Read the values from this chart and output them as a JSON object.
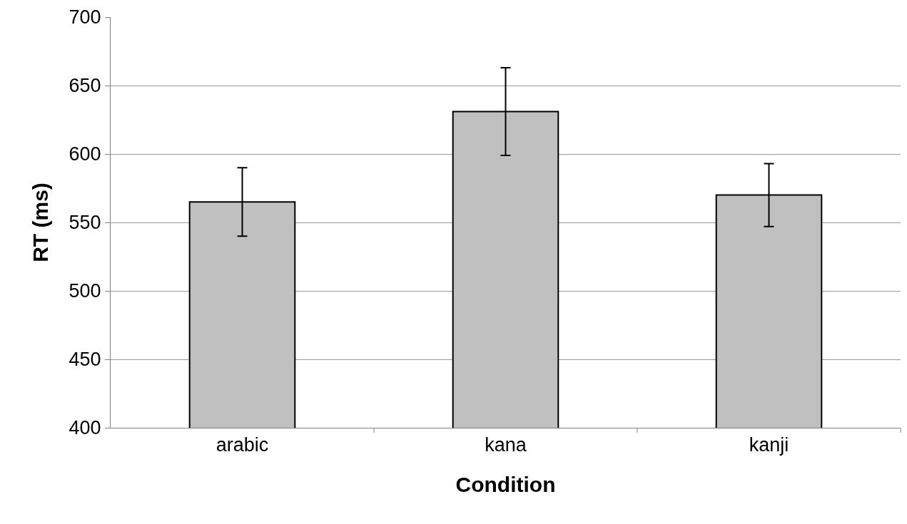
{
  "chart_data": {
    "type": "bar",
    "xlabel": "Condition",
    "ylabel": "RT (ms)",
    "categories": [
      "arabic",
      "kana",
      "kanji"
    ],
    "values": [
      565,
      631,
      570
    ],
    "errors": [
      25,
      32,
      23
    ],
    "color": "#c0c0c0",
    "ylim": [
      400,
      700
    ],
    "yticks": [
      400,
      450,
      500,
      550,
      600,
      650,
      700
    ],
    "grid": "y",
    "legend": false
  }
}
